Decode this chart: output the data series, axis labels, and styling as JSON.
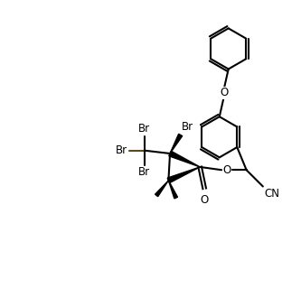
{
  "bg_color": "#ffffff",
  "line_color": "#000000",
  "bond_lw": 1.5,
  "font_size": 8.5,
  "figsize": [
    3.33,
    3.4
  ],
  "dpi": 100,
  "xlim": [
    0,
    10
  ],
  "ylim": [
    0,
    10.2
  ]
}
